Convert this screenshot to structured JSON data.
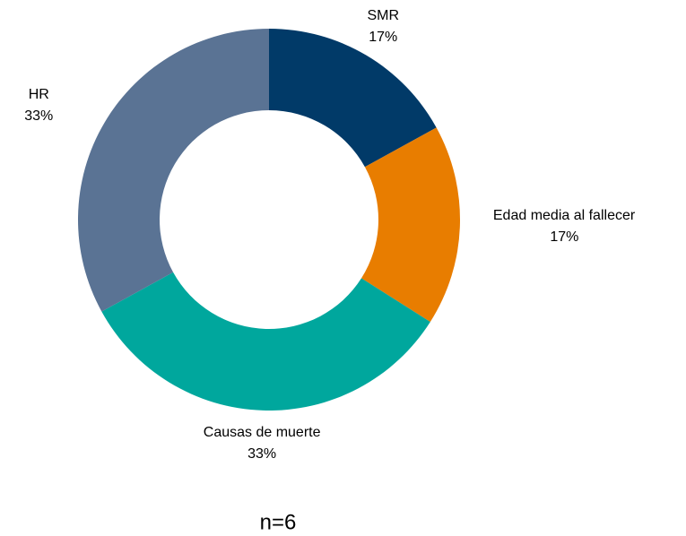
{
  "chart_data": {
    "type": "donut",
    "categories": [
      "SMR",
      "Edad media al fallecer",
      "Causas de muerte",
      "HR"
    ],
    "values": [
      17,
      17,
      33,
      33
    ],
    "value_labels": [
      "17%",
      "17%",
      "33%",
      "33%"
    ],
    "colors": [
      "#013a68",
      "#e87d00",
      "#00a79d",
      "#5a7394"
    ],
    "annotation": "n=6"
  }
}
